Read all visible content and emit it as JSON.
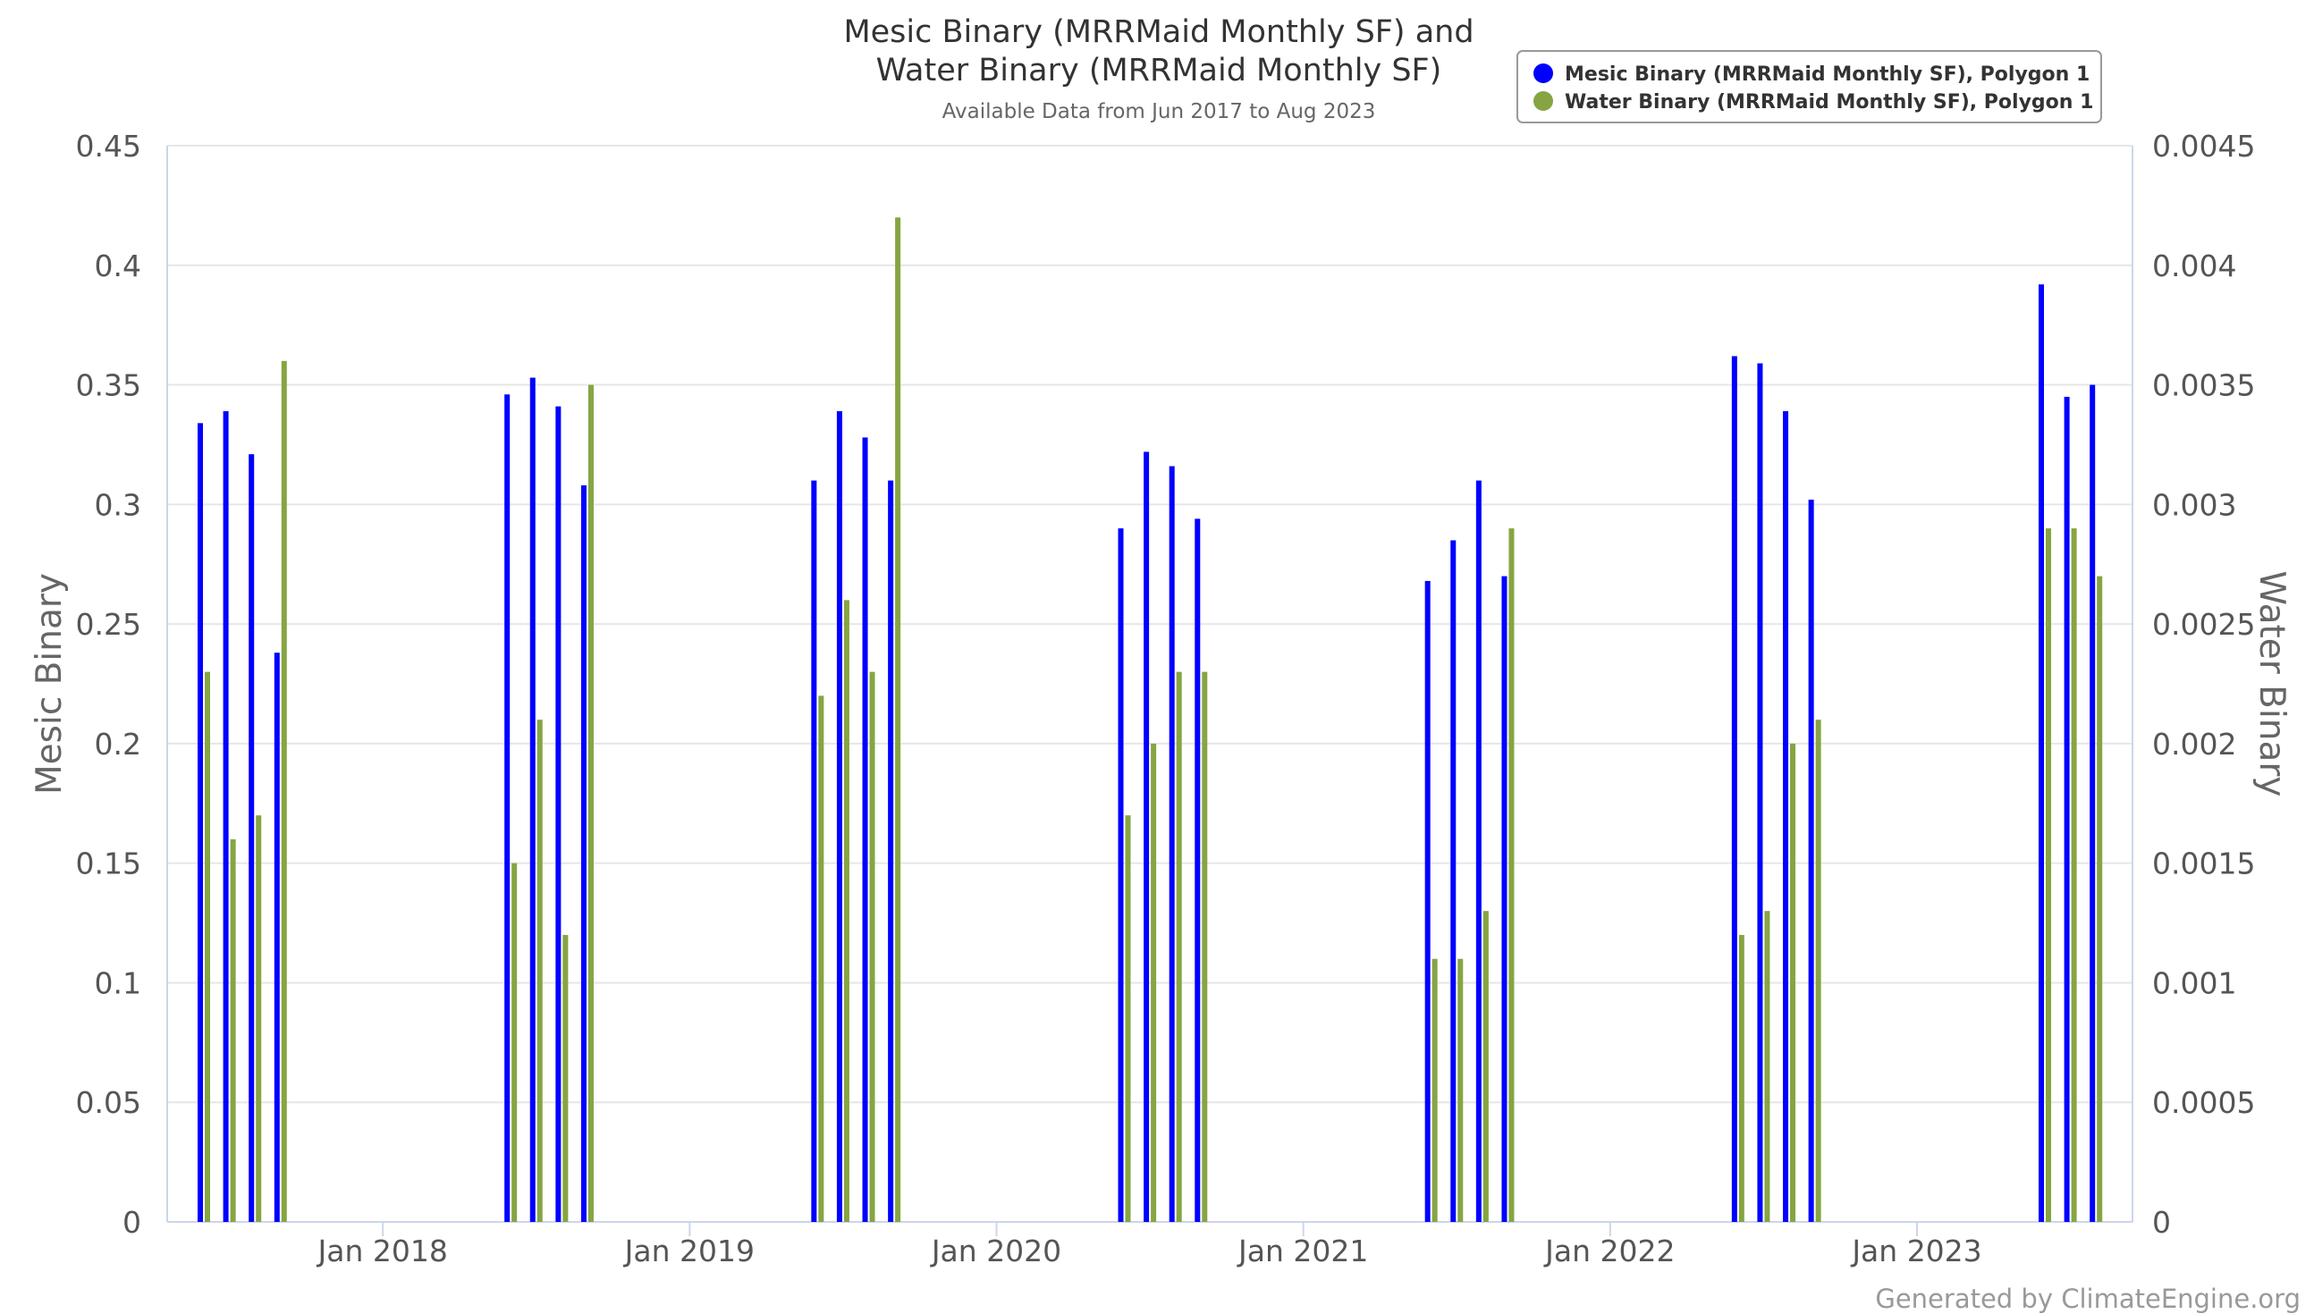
{
  "title_line1": "Mesic Binary (MRRMaid Monthly SF) and",
  "title_line2": "Water Binary (MRRMaid Monthly SF)",
  "subtitle": "Available Data from Jun 2017 to Aug 2023",
  "credits": "Generated by ClimateEngine.org",
  "colors": {
    "mesic": "#0000ff",
    "water": "#86a542"
  },
  "chart_data": {
    "type": "bar",
    "xlabel": "",
    "x_ticks": [
      "Jan 2018",
      "Jan 2019",
      "Jan 2020",
      "Jan 2021",
      "Jan 2022",
      "Jan 2023"
    ],
    "y_left": {
      "label": "Mesic Binary",
      "ylim": [
        0,
        0.45
      ],
      "ticks": [
        "0",
        "0.05",
        "0.1",
        "0.15",
        "0.2",
        "0.25",
        "0.3",
        "0.35",
        "0.4",
        "0.45"
      ]
    },
    "y_right": {
      "label": "Water Binary",
      "ylim": [
        0,
        0.0045
      ],
      "ticks": [
        "0",
        "0.0005",
        "0.001",
        "0.0015",
        "0.002",
        "0.0025",
        "0.003",
        "0.0035",
        "0.004",
        "0.0045"
      ]
    },
    "grid": true,
    "legend_position": "top-right",
    "categories": [
      "2017-06",
      "2017-07",
      "2017-08",
      "2017-09",
      "2018-06",
      "2018-07",
      "2018-08",
      "2018-09",
      "2019-06",
      "2019-07",
      "2019-08",
      "2019-09",
      "2020-06",
      "2020-07",
      "2020-08",
      "2020-09",
      "2021-06",
      "2021-07",
      "2021-08",
      "2021-09",
      "2022-06",
      "2022-07",
      "2022-08",
      "2022-09",
      "2023-06",
      "2023-07",
      "2023-08"
    ],
    "series": [
      {
        "name": "Mesic Binary (MRRMaid Monthly SF), Polygon 1",
        "axis": "left",
        "values": [
          0.334,
          0.339,
          0.321,
          0.238,
          0.346,
          0.353,
          0.341,
          0.308,
          0.31,
          0.339,
          0.328,
          0.31,
          0.29,
          0.322,
          0.316,
          0.294,
          0.268,
          0.285,
          0.31,
          0.27,
          0.362,
          0.359,
          0.339,
          0.302,
          0.392,
          0.345,
          0.35
        ]
      },
      {
        "name": "Water Binary (MRRMaid Monthly SF), Polygon 1",
        "axis": "right",
        "values": [
          0.0023,
          0.0016,
          0.0017,
          0.0036,
          0.0015,
          0.0021,
          0.0012,
          0.0035,
          0.0022,
          0.0026,
          0.0023,
          0.0042,
          0.0017,
          0.002,
          0.0023,
          0.0023,
          0.0011,
          0.0011,
          0.0013,
          0.0029,
          0.0012,
          0.0013,
          0.002,
          0.0021,
          0.0029,
          0.0029,
          0.0027
        ]
      }
    ]
  }
}
